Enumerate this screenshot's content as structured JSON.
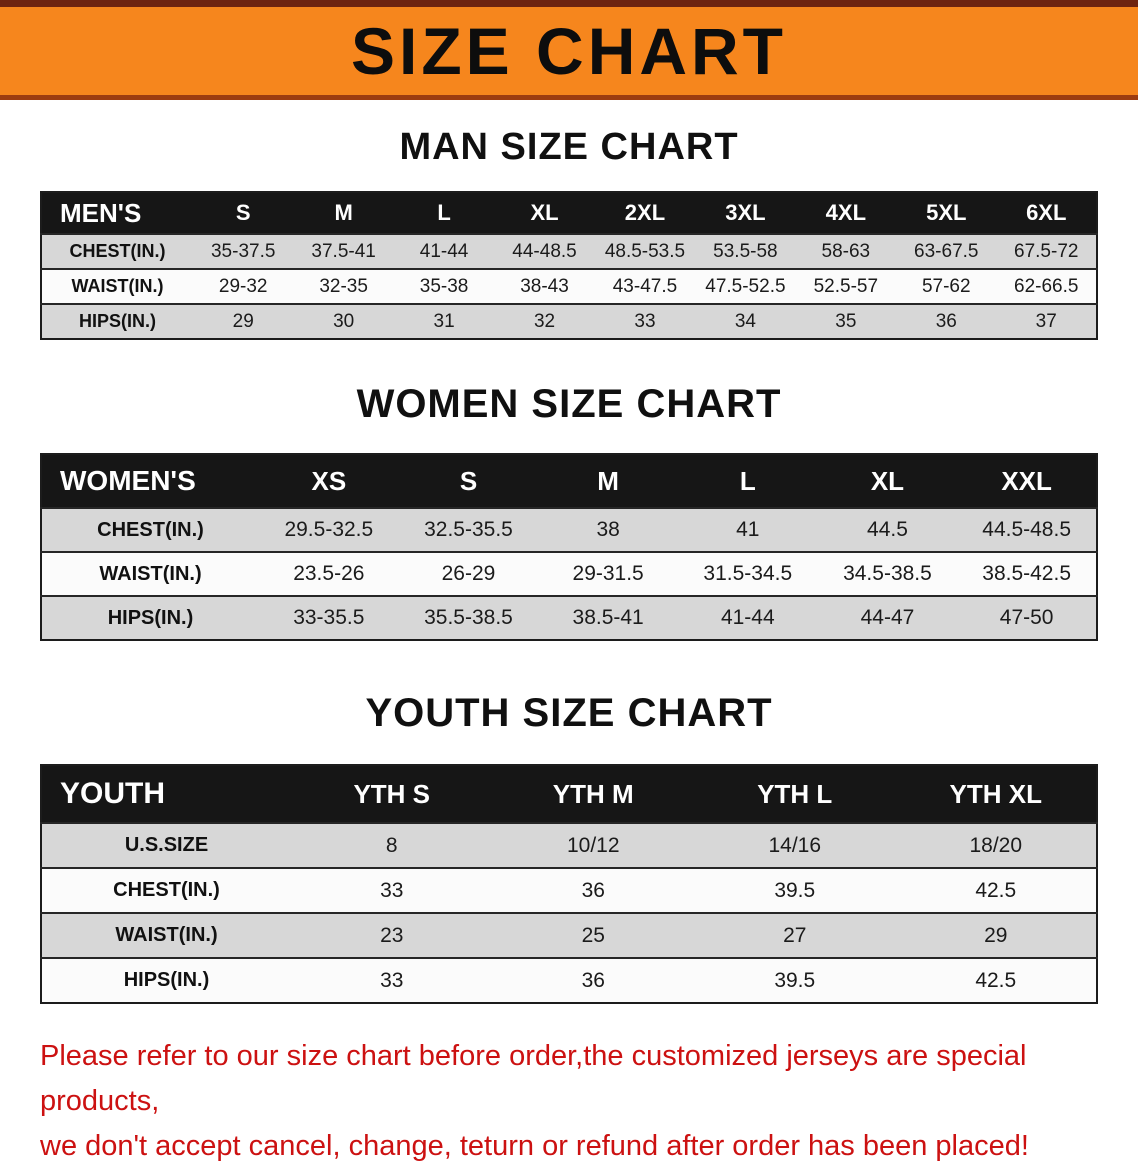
{
  "banner": {
    "title": "SIZE CHART"
  },
  "colors": {
    "banner_bg": "#f6861d",
    "header_black": "#161616",
    "row_gray": "#d7d7d7",
    "disclaimer_red": "#cc1111"
  },
  "men": {
    "heading": "MAN SIZE CHART",
    "table": {
      "header": [
        "MEN'S",
        "S",
        "M",
        "L",
        "XL",
        "2XL",
        "3XL",
        "4XL",
        "5XL",
        "6XL"
      ],
      "rows": [
        [
          "CHEST(IN.)",
          "35-37.5",
          "37.5-41",
          "41-44",
          "44-48.5",
          "48.5-53.5",
          "53.5-58",
          "58-63",
          "63-67.5",
          "67.5-72"
        ],
        [
          "WAIST(IN.)",
          "29-32",
          "32-35",
          "35-38",
          "38-43",
          "43-47.5",
          "47.5-52.5",
          "52.5-57",
          "57-62",
          "62-66.5"
        ],
        [
          "HIPS(IN.)",
          "29",
          "30",
          "31",
          "32",
          "33",
          "34",
          "35",
          "36",
          "37"
        ]
      ]
    }
  },
  "women": {
    "heading": "WOMEN SIZE CHART",
    "table": {
      "header": [
        "WOMEN'S",
        "XS",
        "S",
        "M",
        "L",
        "XL",
        "XXL"
      ],
      "rows": [
        [
          "CHEST(IN.)",
          "29.5-32.5",
          "32.5-35.5",
          "38",
          "41",
          "44.5",
          "44.5-48.5"
        ],
        [
          "WAIST(IN.)",
          "23.5-26",
          "26-29",
          "29-31.5",
          "31.5-34.5",
          "34.5-38.5",
          "38.5-42.5"
        ],
        [
          "HIPS(IN.)",
          "33-35.5",
          "35.5-38.5",
          "38.5-41",
          "41-44",
          "44-47",
          "47-50"
        ]
      ]
    }
  },
  "youth": {
    "heading": "YOUTH SIZE CHART",
    "table": {
      "header": [
        "YOUTH",
        "YTH S",
        "YTH M",
        "YTH L",
        "YTH XL"
      ],
      "rows": [
        [
          "U.S.SIZE",
          "8",
          "10/12",
          "14/16",
          "18/20"
        ],
        [
          "CHEST(IN.)",
          "33",
          "36",
          "39.5",
          "42.5"
        ],
        [
          "WAIST(IN.)",
          "23",
          "25",
          "27",
          "29"
        ],
        [
          "HIPS(IN.)",
          "33",
          "36",
          "39.5",
          "42.5"
        ]
      ]
    }
  },
  "footer": {
    "line1": "Please refer to our size chart before order,the customized jerseys are special products,",
    "line2": "we don't accept cancel, change, teturn or refund after order has been placed!"
  }
}
